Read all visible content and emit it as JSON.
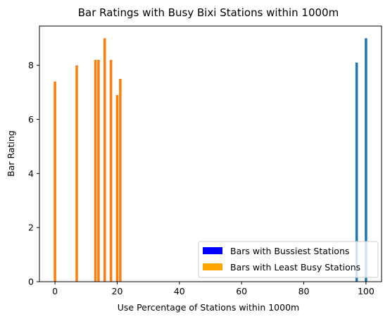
{
  "chart_data": {
    "type": "bar",
    "title": "Bar Ratings with Busy Bixi Stations within 1000m",
    "xlabel": "Use Percentage of Stations within 1000m",
    "ylabel": "Bar Rating",
    "xlim": [
      -5,
      105
    ],
    "ylim": [
      0,
      9.45
    ],
    "xticks": [
      0,
      20,
      40,
      60,
      80,
      100
    ],
    "yticks": [
      0,
      2,
      4,
      6,
      8
    ],
    "grid": false,
    "legend_position": "lower-right",
    "legend": [
      {
        "label": "Bars with Bussiest Stations",
        "color": "#0000ff"
      },
      {
        "label": "Bars with Least Busy Stations",
        "color": "#ffa500"
      }
    ],
    "series": [
      {
        "color": "#ff7f0e",
        "points": [
          {
            "x": 0,
            "y": 7.4
          },
          {
            "x": 7,
            "y": 8.0
          },
          {
            "x": 13,
            "y": 8.2
          },
          {
            "x": 14,
            "y": 8.2
          },
          {
            "x": 16,
            "y": 9.0
          },
          {
            "x": 18,
            "y": 8.2
          },
          {
            "x": 20,
            "y": 6.9
          },
          {
            "x": 21,
            "y": 7.5
          }
        ]
      },
      {
        "color": "#1f77b4",
        "points": [
          {
            "x": 97,
            "y": 8.1
          },
          {
            "x": 100,
            "y": 9.0
          }
        ]
      }
    ]
  }
}
